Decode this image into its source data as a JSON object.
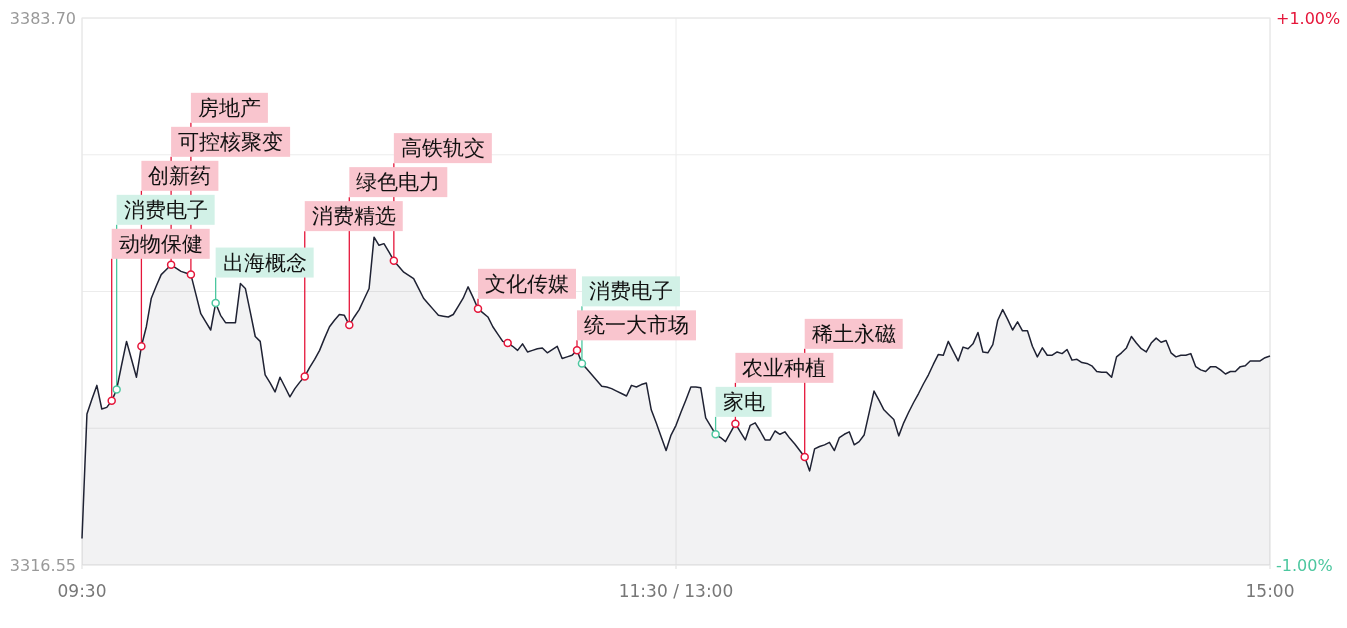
{
  "chart_data": {
    "type": "area",
    "ylim": [
      3316.55,
      3383.7
    ],
    "y2lim": [
      -1,
      1
    ],
    "categories": [
      "09:30",
      null,
      null,
      null,
      null,
      null,
      null,
      null,
      null,
      null,
      null,
      null,
      null,
      null,
      null,
      null,
      null,
      null,
      null,
      null,
      null,
      null,
      null,
      null,
      null,
      null,
      null,
      null,
      null,
      null,
      null,
      null,
      null,
      null,
      null,
      null,
      null,
      null,
      null,
      null,
      null,
      null,
      null,
      null,
      null,
      null,
      null,
      null,
      null,
      null,
      null,
      null,
      null,
      null,
      null,
      null,
      null,
      null,
      null,
      null,
      null,
      null,
      null,
      null,
      null,
      null,
      null,
      null,
      null,
      null,
      null,
      null,
      null,
      null,
      null,
      null,
      null,
      null,
      null,
      null,
      null,
      null,
      null,
      null,
      null,
      null,
      null,
      null,
      null,
      null,
      null,
      null,
      null,
      null,
      null,
      null,
      null,
      null,
      null,
      null,
      null,
      null,
      null,
      null,
      null,
      null,
      null,
      null,
      null,
      null,
      null,
      null,
      null,
      null,
      null,
      null,
      null,
      null,
      null,
      null,
      "11:30 / 13:00",
      null,
      null,
      null,
      null,
      null,
      null,
      null,
      null,
      null,
      null,
      null,
      null,
      null,
      null,
      null,
      null,
      null,
      null,
      null,
      null,
      null,
      null,
      null,
      null,
      null,
      null,
      null,
      null,
      null,
      null,
      null,
      null,
      null,
      null,
      null,
      null,
      null,
      null,
      null,
      null,
      null,
      null,
      null,
      null,
      null,
      null,
      null,
      null,
      null,
      null,
      null,
      null,
      null,
      null,
      null,
      null,
      null,
      null,
      null,
      null,
      null,
      null,
      null,
      null,
      null,
      null,
      null,
      null,
      null,
      null,
      null,
      null,
      null,
      null,
      null,
      null,
      null,
      null,
      null,
      null,
      null,
      null,
      null,
      null,
      null,
      null,
      null,
      null,
      null,
      null,
      null,
      null,
      null,
      null,
      null,
      null,
      null,
      null,
      null,
      null,
      null,
      null,
      null,
      null,
      null,
      null,
      null,
      null,
      null,
      null,
      null,
      null,
      null,
      null,
      null,
      null,
      null,
      null,
      null,
      "15:00"
    ],
    "yticks": [
      {
        "value": 3316.55,
        "label": "3316.55"
      },
      {
        "value": 3333.34,
        "label": null
      },
      {
        "value": 3350.125,
        "label": null
      },
      {
        "value": 3366.91,
        "label": null
      },
      {
        "value": 3383.7,
        "label": "3383.70"
      }
    ],
    "y2ticks": [
      {
        "value": -1,
        "label": "-1.00%"
      },
      {
        "value": 1,
        "label": "+1.00%"
      }
    ],
    "grid": true,
    "series": [
      {
        "color": "#1f2233",
        "values": [
          3319.8,
          3335.1,
          3336.9,
          3338.6,
          3335.7,
          3335.9,
          3336.7,
          3338.1,
          3341.1,
          3344.0,
          3341.8,
          3339.6,
          3343.4,
          3345.8,
          3349.3,
          3350.8,
          3352.2,
          3352.8,
          3353.4,
          3353.0,
          3352.6,
          3352.4,
          3352.2,
          3349.8,
          3347.4,
          3346.4,
          3345.4,
          3348.7,
          3347.2,
          3346.3,
          3346.3,
          3346.3,
          3351.1,
          3350.5,
          3347.6,
          3344.6,
          3344.0,
          3339.9,
          3338.9,
          3337.8,
          3339.6,
          3338.4,
          3337.2,
          3338.2,
          3339.0,
          3339.7,
          3340.8,
          3341.8,
          3342.9,
          3344.4,
          3345.8,
          3346.6,
          3347.3,
          3347.2,
          3346.0,
          3347.0,
          3347.9,
          3349.2,
          3350.5,
          3356.8,
          3355.8,
          3356.0,
          3355.0,
          3353.9,
          3353.2,
          3352.5,
          3352.1,
          3351.7,
          3350.5,
          3349.3,
          3348.6,
          3347.9,
          3347.2,
          3347.1,
          3347.0,
          3347.3,
          3348.3,
          3349.3,
          3350.7,
          3349.4,
          3348.0,
          3347.5,
          3347.0,
          3345.8,
          3344.9,
          3344.0,
          3343.8,
          3343.4,
          3342.9,
          3343.7,
          3342.7,
          3342.9,
          3343.1,
          3343.2,
          3342.6,
          3343.0,
          3343.4,
          3341.9,
          3342.1,
          3342.3,
          3342.9,
          3341.3,
          3340.6,
          3339.9,
          3339.2,
          3338.5,
          3338.4,
          3338.2,
          3337.9,
          3337.6,
          3337.3,
          3338.6,
          3338.4,
          3338.7,
          3338.9,
          3335.6,
          3334.0,
          3332.3,
          3330.6,
          3332.5,
          3333.7,
          3335.3,
          3336.8,
          3338.4,
          3338.4,
          3338.3,
          3334.6,
          3333.6,
          3332.6,
          3332.2,
          3331.7,
          3332.8,
          3333.9,
          3332.9,
          3331.9,
          3333.7,
          3334.0,
          3333.0,
          3331.9,
          3331.9,
          3333.0,
          3332.6,
          3332.9,
          3332.1,
          3331.4,
          3330.6,
          3329.8,
          3328.1,
          3330.8,
          3331.1,
          3331.3,
          3331.6,
          3330.6,
          3332.2,
          3332.6,
          3332.9,
          3331.3,
          3331.7,
          3332.5,
          3335.2,
          3337.9,
          3336.8,
          3335.6,
          3335.0,
          3334.4,
          3332.4,
          3334.0,
          3335.3,
          3336.5,
          3337.6,
          3338.8,
          3339.9,
          3341.2,
          3342.4,
          3342.3,
          3344.0,
          3342.8,
          3341.6,
          3343.3,
          3343.1,
          3343.7,
          3345.1,
          3342.7,
          3342.6,
          3343.6,
          3346.6,
          3347.9,
          3346.7,
          3345.4,
          3346.4,
          3345.3,
          3345.3,
          3343.4,
          3342.1,
          3343.2,
          3342.3,
          3342.3,
          3342.7,
          3342.5,
          3343.0,
          3341.7,
          3341.8,
          3341.4,
          3341.3,
          3341.0,
          3340.3,
          3340.2,
          3340.2,
          3339.6,
          3342.1,
          3342.6,
          3343.2,
          3344.6,
          3343.8,
          3343.1,
          3342.7,
          3343.8,
          3344.4,
          3343.9,
          3344.1,
          3342.6,
          3342.1,
          3342.3,
          3342.3,
          3342.5,
          3340.9,
          3340.5,
          3340.3,
          3340.9,
          3340.9,
          3340.5,
          3340.0,
          3340.3,
          3340.3,
          3340.9,
          3341.0,
          3341.6,
          3341.6,
          3341.6,
          3342.0,
          3342.2
        ]
      },
      {
        "type": "scatter",
        "color": "#e5163a",
        "marker": "circle",
        "values": [
          null,
          null,
          null,
          null,
          null,
          null,
          3336.7,
          null,
          null,
          null,
          null,
          null,
          3343.4,
          null,
          null,
          null,
          null,
          null,
          3353.4,
          null,
          null,
          null,
          3352.2,
          null,
          null,
          null,
          null,
          null,
          null,
          null,
          null,
          null,
          null,
          null,
          null,
          null,
          null,
          null,
          null,
          null,
          null,
          null,
          null,
          null,
          null,
          3339.7,
          null,
          null,
          null,
          null,
          null,
          null,
          null,
          null,
          3346.0,
          null,
          null,
          null,
          null,
          null,
          null,
          null,
          null,
          3353.9,
          null,
          null,
          null,
          null,
          null,
          null,
          null,
          null,
          null,
          null,
          null,
          null,
          null,
          null,
          null,
          null,
          3348.0,
          null,
          null,
          null,
          null,
          null,
          3343.8,
          null,
          null,
          null,
          null,
          null,
          null,
          null,
          null,
          null,
          null,
          null,
          null,
          null,
          3342.9,
          null,
          null,
          null,
          null,
          null,
          null,
          null,
          null,
          null,
          null,
          null,
          null,
          null,
          null,
          null,
          null,
          null,
          null,
          null,
          null,
          null,
          null,
          null,
          null,
          null,
          null,
          null,
          null,
          null,
          null,
          null,
          3333.9,
          null,
          null,
          null,
          null,
          null,
          null,
          null,
          null,
          null,
          null,
          null,
          null,
          null,
          3329.8,
          null,
          null,
          null,
          null,
          null,
          null,
          null,
          null,
          null,
          null,
          null,
          null,
          null,
          null,
          null,
          null,
          null,
          null,
          null,
          null,
          null,
          null,
          null,
          null,
          null,
          null,
          null,
          null,
          null,
          null,
          null,
          null,
          null,
          null,
          null,
          null,
          null,
          null,
          null,
          null,
          null,
          null,
          null,
          null,
          null,
          null,
          null,
          null,
          null,
          null,
          null,
          null,
          null,
          null,
          null,
          null,
          null,
          null,
          null,
          null,
          null,
          null,
          null,
          null,
          null,
          null,
          null,
          null,
          null,
          null,
          null,
          null,
          null,
          null,
          null,
          null,
          null,
          null,
          null,
          null,
          null,
          null,
          null,
          null,
          null,
          null,
          null,
          null,
          null,
          null,
          null,
          null,
          null,
          null
        ],
        "value_labels": [
          null,
          null,
          null,
          null,
          null,
          null,
          "动物保健",
          null,
          null,
          null,
          null,
          null,
          "创新药",
          null,
          null,
          null,
          null,
          null,
          "可控核聚变",
          null,
          null,
          null,
          "房地产",
          null,
          null,
          null,
          null,
          null,
          null,
          null,
          null,
          null,
          null,
          null,
          null,
          null,
          null,
          null,
          null,
          null,
          null,
          null,
          null,
          null,
          null,
          "消费精选",
          null,
          null,
          null,
          null,
          null,
          null,
          null,
          null,
          "绿色电力",
          null,
          null,
          null,
          null,
          null,
          null,
          null,
          null,
          "高铁轨交",
          null,
          null,
          null,
          null,
          null,
          null,
          null,
          null,
          null,
          null,
          null,
          null,
          null,
          null,
          null,
          null,
          "文化传媒",
          null,
          null,
          null,
          null,
          null,
          null,
          null,
          null,
          null,
          null,
          null,
          null,
          null,
          null,
          null,
          null,
          null,
          null,
          null,
          "统一大市场",
          null,
          null,
          null,
          null,
          null,
          null,
          null,
          null,
          null,
          null,
          null,
          null,
          null,
          null,
          null,
          null,
          null,
          null,
          null,
          null,
          null,
          null,
          null,
          null,
          null,
          null,
          null,
          null,
          null,
          null,
          null,
          "农业种植",
          null,
          null,
          null,
          null,
          null,
          null,
          null,
          null,
          null,
          null,
          null,
          null,
          null,
          "稀土永磁",
          null,
          null,
          null,
          null,
          null,
          null,
          null,
          null,
          null,
          null,
          null,
          null,
          null,
          null,
          null,
          null,
          null,
          null,
          null,
          null,
          null,
          null,
          null,
          null,
          null,
          null,
          null,
          null,
          null,
          null,
          null,
          null,
          null,
          null,
          null,
          null,
          null,
          null,
          null,
          null,
          null,
          null,
          null,
          null,
          null,
          null,
          null,
          null,
          null,
          null,
          null,
          null,
          null,
          null,
          null,
          null,
          null,
          null,
          null,
          null,
          null,
          null,
          null,
          null,
          null,
          null,
          null,
          null,
          null,
          null,
          null,
          null,
          null,
          null,
          null,
          null,
          null,
          null,
          null,
          null,
          null,
          null,
          null,
          null,
          null,
          null,
          null,
          null,
          null,
          null,
          null,
          null,
          null,
          null
        ]
      },
      {
        "type": "scatter",
        "color": "#4cc79f",
        "marker": "circle",
        "values": [
          null,
          null,
          null,
          null,
          null,
          null,
          null,
          3338.1,
          null,
          null,
          null,
          null,
          null,
          null,
          null,
          null,
          null,
          null,
          null,
          null,
          null,
          null,
          null,
          null,
          null,
          null,
          null,
          3348.7,
          null,
          null,
          null,
          null,
          null,
          null,
          null,
          null,
          null,
          null,
          null,
          null,
          null,
          null,
          null,
          null,
          null,
          null,
          null,
          null,
          null,
          null,
          null,
          null,
          null,
          null,
          null,
          null,
          null,
          null,
          null,
          null,
          null,
          null,
          null,
          null,
          null,
          null,
          null,
          null,
          null,
          null,
          null,
          null,
          null,
          null,
          null,
          null,
          null,
          null,
          null,
          null,
          null,
          null,
          null,
          null,
          null,
          null,
          null,
          null,
          null,
          null,
          null,
          null,
          null,
          null,
          null,
          null,
          null,
          null,
          null,
          null,
          null,
          3341.3,
          null,
          null,
          null,
          null,
          null,
          null,
          null,
          null,
          null,
          null,
          null,
          null,
          null,
          null,
          null,
          null,
          null,
          null,
          null,
          null,
          null,
          null,
          null,
          null,
          null,
          null,
          3332.6,
          null,
          null,
          null,
          null,
          null,
          null,
          null,
          null,
          null,
          null,
          null,
          null,
          null,
          null,
          null,
          null,
          null,
          null,
          null,
          null,
          null,
          null,
          null,
          null,
          null,
          null,
          null,
          null,
          null,
          null,
          null,
          null,
          null,
          null,
          null,
          null,
          null,
          null,
          null,
          null,
          null,
          null,
          null,
          null,
          null,
          null,
          null,
          null,
          null,
          null,
          null,
          null,
          null,
          null,
          null,
          null,
          null,
          null,
          null,
          null,
          null,
          null,
          null,
          null,
          null,
          null,
          null,
          null,
          null,
          null,
          null,
          null,
          null,
          null,
          null,
          null,
          null,
          null,
          null,
          null,
          null,
          null,
          null,
          null,
          null,
          null,
          null,
          null,
          null,
          null,
          null,
          null,
          null,
          null,
          null,
          null,
          null,
          null,
          null,
          null,
          null,
          null,
          null,
          null,
          null,
          null,
          null,
          null,
          null,
          null,
          null,
          null
        ],
        "value_labels": [
          null,
          null,
          null,
          null,
          null,
          null,
          null,
          "消费电子",
          null,
          null,
          null,
          null,
          null,
          null,
          null,
          null,
          null,
          null,
          null,
          null,
          null,
          null,
          null,
          null,
          null,
          null,
          null,
          "出海概念",
          null,
          null,
          null,
          null,
          null,
          null,
          null,
          null,
          null,
          null,
          null,
          null,
          null,
          null,
          null,
          null,
          null,
          null,
          null,
          null,
          null,
          null,
          null,
          null,
          null,
          null,
          null,
          null,
          null,
          null,
          null,
          null,
          null,
          null,
          null,
          null,
          null,
          null,
          null,
          null,
          null,
          null,
          null,
          null,
          null,
          null,
          null,
          null,
          null,
          null,
          null,
          null,
          null,
          null,
          null,
          null,
          null,
          null,
          null,
          null,
          null,
          null,
          null,
          null,
          null,
          null,
          null,
          null,
          null,
          null,
          null,
          null,
          null,
          "消费电子",
          null,
          null,
          null,
          null,
          null,
          null,
          null,
          null,
          null,
          null,
          null,
          null,
          null,
          null,
          null,
          null,
          null,
          null,
          null,
          null,
          null,
          null,
          null,
          null,
          null,
          null,
          "家电",
          null,
          null,
          null,
          null,
          null,
          null,
          null,
          null,
          null,
          null,
          null,
          null,
          null,
          null,
          null,
          null,
          null,
          null,
          null,
          null,
          null,
          null,
          null,
          null,
          null,
          null,
          null,
          null,
          null,
          null,
          null,
          null,
          null,
          null,
          null,
          null,
          null,
          null,
          null,
          null,
          null,
          null,
          null,
          null,
          null,
          null,
          null,
          null,
          null,
          null,
          null,
          null,
          null,
          null,
          null,
          null,
          null,
          null,
          null,
          null,
          null,
          null,
          null,
          null,
          null,
          null,
          null,
          null,
          null,
          null,
          null,
          null,
          null,
          null,
          null,
          null,
          null,
          null,
          null,
          null,
          null,
          null,
          null,
          null,
          null,
          null,
          null,
          null,
          null,
          null,
          null,
          null,
          null,
          null,
          null,
          null,
          null,
          null,
          null,
          null,
          null,
          null,
          null,
          null,
          null,
          null,
          null,
          null,
          null,
          null,
          null,
          null
        ]
      }
    ]
  }
}
